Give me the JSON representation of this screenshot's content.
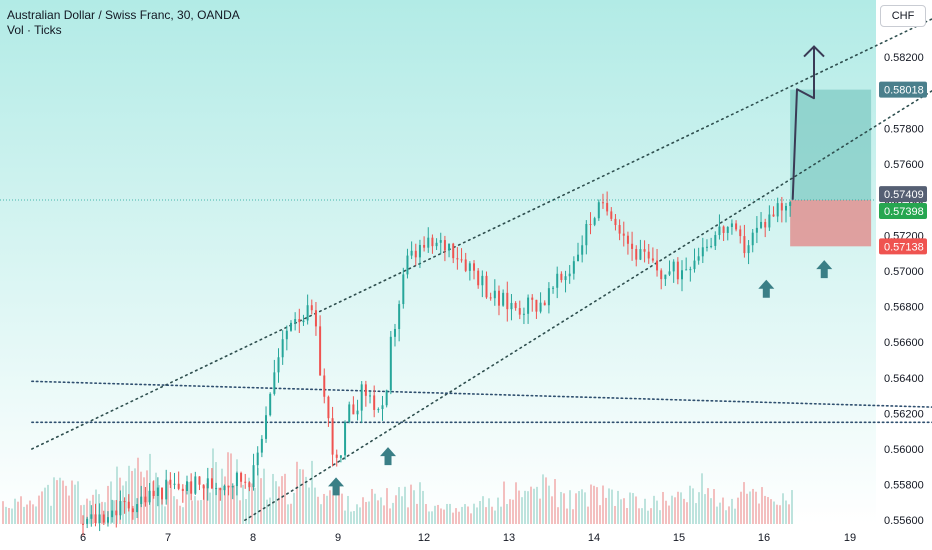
{
  "header": {
    "title": "Australian Dollar / Swiss Franc, 30, OANDA",
    "indicator": "Vol · Ticks",
    "currency_button": "CHF"
  },
  "colors": {
    "background_gradient_top": "#b2ebe6",
    "background_gradient_bottom": "#ffffff",
    "up_candle": "#26a69a",
    "down_candle": "#ef5350",
    "channel_line": "#2f4f4f",
    "target_zone": "#80cbc4",
    "stop_zone": "#e57373",
    "arrow_marker": "#3a7f86",
    "projection_line": "#3a3a55"
  },
  "chart_data": {
    "type": "candlestick",
    "title": "Australian Dollar / Swiss Franc, 30, OANDA",
    "subtitle": "Vol · Ticks",
    "x_ticks": [
      "6",
      "7",
      "8",
      "9",
      "12",
      "13",
      "14",
      "15",
      "16",
      "19"
    ],
    "y_ticks": [
      "0.58200",
      "0.58000",
      "0.57800",
      "0.57600",
      "0.57400",
      "0.57200",
      "0.57000",
      "0.56800",
      "0.56600",
      "0.56400",
      "0.56200",
      "0.56000",
      "0.55800",
      "0.55600"
    ],
    "ylim": [
      0.5559,
      0.5851
    ],
    "price_path": [
      {
        "x": 5.0,
        "y": 0.5558
      },
      {
        "x": 6.0,
        "y": 0.5578
      },
      {
        "x": 6.5,
        "y": 0.558
      },
      {
        "x": 7.0,
        "y": 0.5585
      },
      {
        "x": 7.2,
        "y": 0.5634
      },
      {
        "x": 7.45,
        "y": 0.5676
      },
      {
        "x": 7.7,
        "y": 0.5675
      },
      {
        "x": 7.85,
        "y": 0.5622
      },
      {
        "x": 8.0,
        "y": 0.5585
      },
      {
        "x": 8.1,
        "y": 0.5618
      },
      {
        "x": 8.3,
        "y": 0.5633
      },
      {
        "x": 8.55,
        "y": 0.5617
      },
      {
        "x": 8.6,
        "y": 0.5655
      },
      {
        "x": 8.8,
        "y": 0.5705
      },
      {
        "x": 9.0,
        "y": 0.5713
      },
      {
        "x": 9.3,
        "y": 0.5715
      },
      {
        "x": 9.6,
        "y": 0.57
      },
      {
        "x": 9.85,
        "y": 0.5683
      },
      {
        "x": 10.1,
        "y": 0.568
      },
      {
        "x": 10.4,
        "y": 0.5683
      },
      {
        "x": 10.7,
        "y": 0.57
      },
      {
        "x": 11.0,
        "y": 0.5733
      },
      {
        "x": 11.2,
        "y": 0.5735
      },
      {
        "x": 11.45,
        "y": 0.5712
      },
      {
        "x": 11.8,
        "y": 0.5698
      },
      {
        "x": 12.0,
        "y": 0.57
      },
      {
        "x": 12.3,
        "y": 0.5716
      },
      {
        "x": 12.55,
        "y": 0.5725
      },
      {
        "x": 12.75,
        "y": 0.5713
      },
      {
        "x": 13.0,
        "y": 0.5728
      },
      {
        "x": 13.15,
        "y": 0.5736
      },
      {
        "x": 13.3,
        "y": 0.574
      }
    ],
    "volume_profile": [
      0.3,
      0.5,
      0.6,
      0.4,
      0.7,
      0.9,
      0.5,
      0.6,
      1.0,
      0.7,
      0.6,
      0.8,
      0.5,
      0.3,
      0.4,
      0.5,
      0.3,
      0.2,
      0.3,
      0.5,
      0.6,
      0.4,
      0.5,
      0.4,
      0.3,
      0.4,
      0.6,
      0.3,
      0.5,
      0.4
    ],
    "channel_upper": [
      {
        "x": 4.4,
        "y": 0.56
      },
      {
        "x": 15.6,
        "y": 0.5856
      }
    ],
    "channel_lower": [
      {
        "x": 6.9,
        "y": 0.556
      },
      {
        "x": 16.6,
        "y": 0.585
      }
    ],
    "horizontal_lines": [
      {
        "from": {
          "x": 4.4,
          "y": 0.5638
        },
        "to": {
          "x": 16.8,
          "y": 0.5621
        }
      },
      {
        "from": {
          "x": 4.4,
          "y": 0.5615
        },
        "to": {
          "x": 16.8,
          "y": 0.5615
        }
      }
    ],
    "position_tool": {
      "x_start": 13.3,
      "x_end": 14.25,
      "entry": 0.57398,
      "target": 0.58018,
      "stop": 0.57138
    },
    "projection_path": [
      {
        "x": 13.33,
        "y": 0.574
      },
      {
        "x": 13.38,
        "y": 0.5802
      },
      {
        "x": 13.58,
        "y": 0.5797
      },
      {
        "x": 13.58,
        "y": 0.5826
      }
    ],
    "arrow_markers": [
      {
        "x": 7.97,
        "y": 0.5579
      },
      {
        "x": 8.58,
        "y": 0.5596
      },
      {
        "x": 13.02,
        "y": 0.569
      },
      {
        "x": 13.7,
        "y": 0.5701
      }
    ],
    "price_labels": [
      {
        "value": "0.58018",
        "color": "#4a7f8c"
      },
      {
        "value": "0.57409",
        "color": "#555f73"
      },
      {
        "value": "0.57398",
        "color": "#26a650"
      },
      {
        "value": "0.57138",
        "color": "#ef5350"
      }
    ],
    "current_price": 0.57398,
    "grid": false
  }
}
